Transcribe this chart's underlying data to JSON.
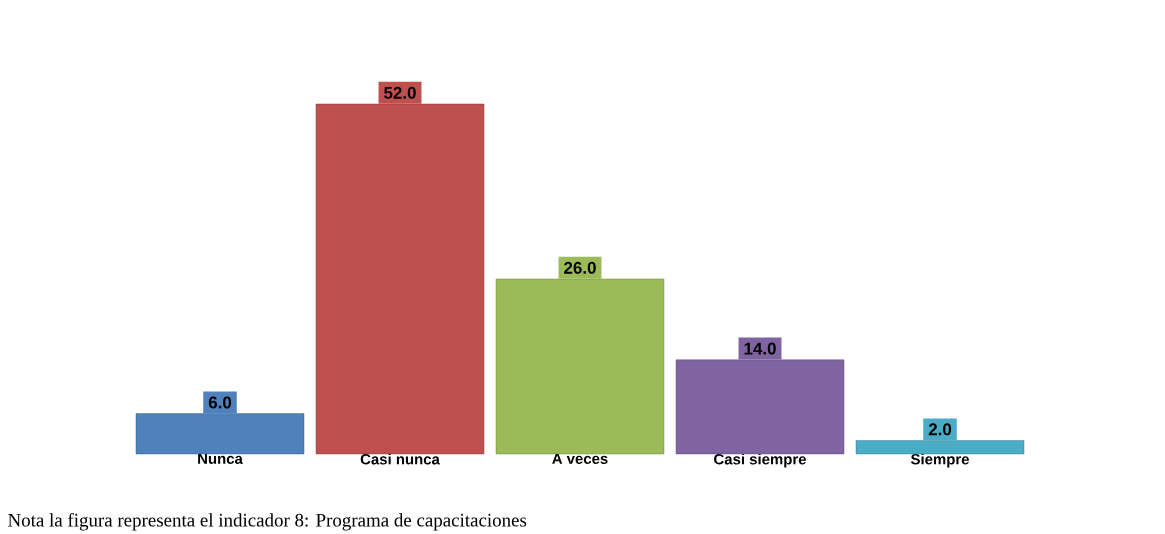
{
  "chart_data": {
    "type": "bar",
    "categories": [
      "Nunca",
      "Casi nunca",
      "A veces",
      "Casi siempre",
      "Siempre"
    ],
    "values": [
      6.0,
      52.0,
      26.0,
      14.0,
      2.0
    ],
    "value_labels": [
      "6.0",
      "52.0",
      "26.0",
      "14.0",
      "2.0"
    ],
    "colors": [
      "#4f81bd",
      "#c0504d",
      "#9bbb59",
      "#8064a2",
      "#4bacc6"
    ],
    "annotations": [
      "Nota la figura representa el indicador 8: Programa de capacitaciones"
    ]
  }
}
